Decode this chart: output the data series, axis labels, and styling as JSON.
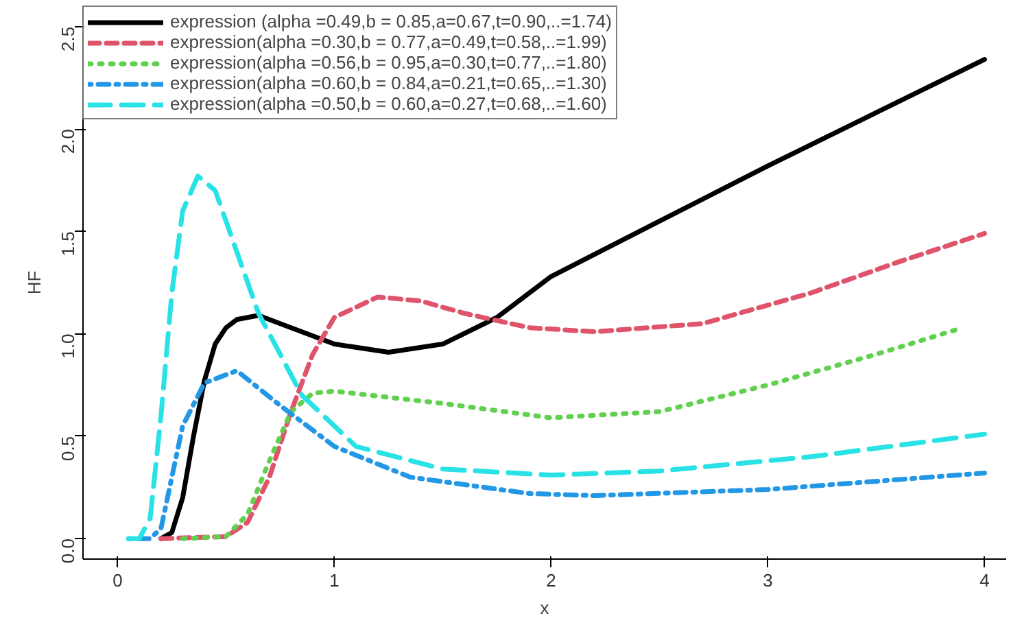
{
  "chart_data": {
    "type": "line",
    "xlabel": "x",
    "ylabel": "HF",
    "xlim": [
      -0.16,
      4.1
    ],
    "ylim": [
      -0.1,
      2.6
    ],
    "xticks": [
      0,
      1,
      2,
      3,
      4
    ],
    "yticks": [
      {
        "value": 0,
        "label": "0.0"
      },
      {
        "value": 0.5,
        "label": "0.5"
      },
      {
        "value": 1,
        "label": "1.0"
      },
      {
        "value": 1.5,
        "label": "1.5"
      },
      {
        "value": 2,
        "label": "2.0"
      },
      {
        "value": 2.5,
        "label": "2.5"
      }
    ],
    "grid": false,
    "legend": "top left",
    "marker": "none",
    "series": [
      {
        "name": "expression (alpha =0.49,b = 0.85,a=0.67,t=0.90,..=1.74)",
        "color": "#000000",
        "line_style": "solid",
        "x": [
          0.2,
          0.25,
          0.3,
          0.35,
          0.4,
          0.45,
          0.5,
          0.55,
          0.65,
          0.8,
          1.0,
          1.25,
          1.5,
          1.75,
          2.0,
          2.5,
          3.0,
          3.5,
          4.0
        ],
        "values": [
          0.0,
          0.03,
          0.2,
          0.5,
          0.77,
          0.95,
          1.03,
          1.07,
          1.09,
          1.03,
          0.95,
          0.91,
          0.95,
          1.08,
          1.28,
          1.55,
          1.82,
          2.08,
          2.34
        ]
      },
      {
        "name": "expression(alpha =0.30,b = 0.77,a=0.49,t=0.58,..=1.99)",
        "color": "#df536b",
        "line_style": "dashed",
        "x": [
          0.2,
          0.5,
          0.6,
          0.7,
          0.8,
          0.9,
          1.0,
          1.2,
          1.4,
          1.6,
          1.9,
          2.2,
          2.7,
          3.2,
          3.6,
          4.0
        ],
        "values": [
          0.0,
          0.01,
          0.08,
          0.3,
          0.62,
          0.9,
          1.08,
          1.18,
          1.16,
          1.1,
          1.03,
          1.01,
          1.05,
          1.2,
          1.35,
          1.49
        ]
      },
      {
        "name": "expression(alpha =0.56,b = 0.95,a=0.30,t=0.77,..=1.80)",
        "color": "#61d04f",
        "line_style": "dotted",
        "x": [
          0.3,
          0.5,
          0.6,
          0.7,
          0.8,
          0.9,
          1.0,
          1.5,
          2.0,
          2.5,
          3.0,
          3.5,
          3.9
        ],
        "values": [
          0.0,
          0.01,
          0.12,
          0.38,
          0.62,
          0.71,
          0.72,
          0.66,
          0.59,
          0.62,
          0.75,
          0.9,
          1.03
        ]
      },
      {
        "name": "expression(alpha =0.60,b = 0.84,a=0.21,t=0.65,..=1.30)",
        "color": "#2297e6",
        "line_style": "dashdot",
        "x": [
          0.05,
          0.15,
          0.2,
          0.25,
          0.3,
          0.4,
          0.55,
          0.75,
          1.0,
          1.35,
          1.9,
          2.2,
          3.0,
          4.0
        ],
        "values": [
          0.0,
          0.0,
          0.05,
          0.3,
          0.55,
          0.76,
          0.82,
          0.65,
          0.45,
          0.3,
          0.22,
          0.21,
          0.24,
          0.32
        ]
      },
      {
        "name": "expression(alpha =0.50,b = 0.60,a=0.27,t=0.68,..=1.60)",
        "color": "#28e2e5",
        "line_style": "longdash",
        "x": [
          0.05,
          0.1,
          0.15,
          0.2,
          0.25,
          0.3,
          0.37,
          0.45,
          0.55,
          0.65,
          0.85,
          1.1,
          1.5,
          2.0,
          2.5,
          3.2,
          4.0
        ],
        "values": [
          0.0,
          0.0,
          0.1,
          0.6,
          1.2,
          1.6,
          1.77,
          1.7,
          1.4,
          1.1,
          0.7,
          0.45,
          0.34,
          0.31,
          0.33,
          0.4,
          0.51
        ]
      }
    ]
  }
}
